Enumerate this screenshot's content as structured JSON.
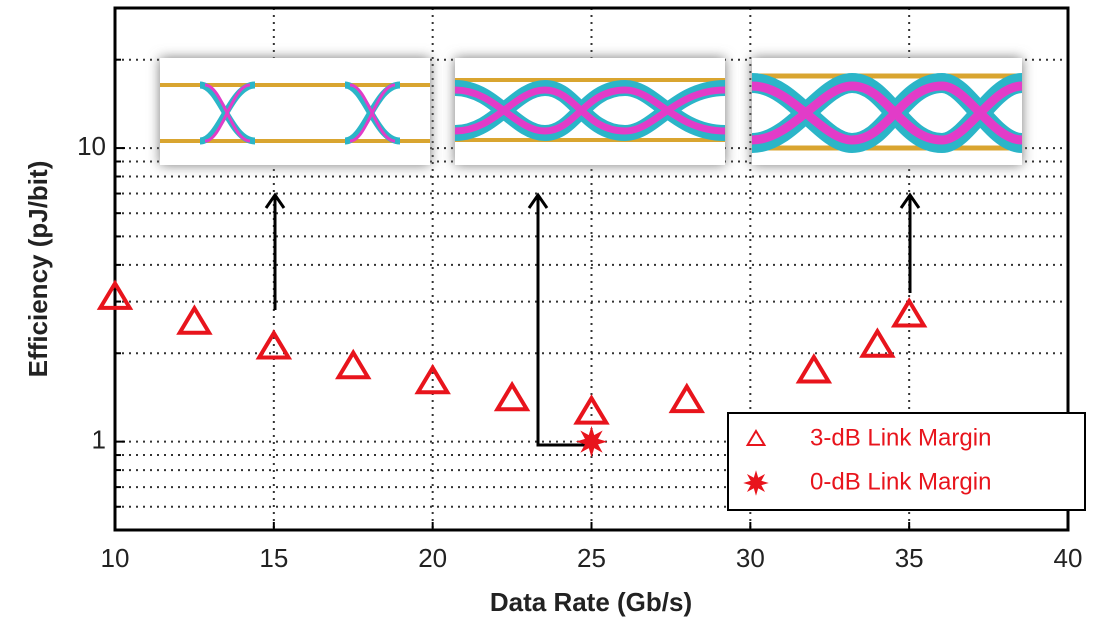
{
  "chart_data": {
    "type": "scatter",
    "xlabel": "Data Rate (Gb/s)",
    "ylabel": "Efficiency (pJ/bit)",
    "xlim": [
      10,
      40
    ],
    "xticks": [
      10,
      15,
      20,
      25,
      30,
      35,
      40
    ],
    "ylim": [
      0.5,
      30
    ],
    "yscale": "log",
    "yticks": [
      1,
      10
    ],
    "yminorticks": [
      0.6,
      0.7,
      0.8,
      0.9,
      2,
      3,
      4,
      5,
      6,
      7,
      8,
      9,
      20
    ],
    "grid": true,
    "legend": "lower right",
    "series": [
      {
        "name": "3-dB Link Margin",
        "color": "#e8141c",
        "marker": "triangle",
        "x": [
          10,
          12.5,
          15,
          17.5,
          20,
          22.5,
          25,
          28,
          32,
          34,
          35
        ],
        "values": [
          3.1,
          2.55,
          2.1,
          1.8,
          1.6,
          1.4,
          1.26,
          1.38,
          1.74,
          2.13,
          2.7
        ]
      },
      {
        "name": "0-dB Link Margin",
        "color": "#e8141c",
        "marker": "star",
        "x": [
          25
        ],
        "values": [
          1
        ]
      }
    ]
  }
}
